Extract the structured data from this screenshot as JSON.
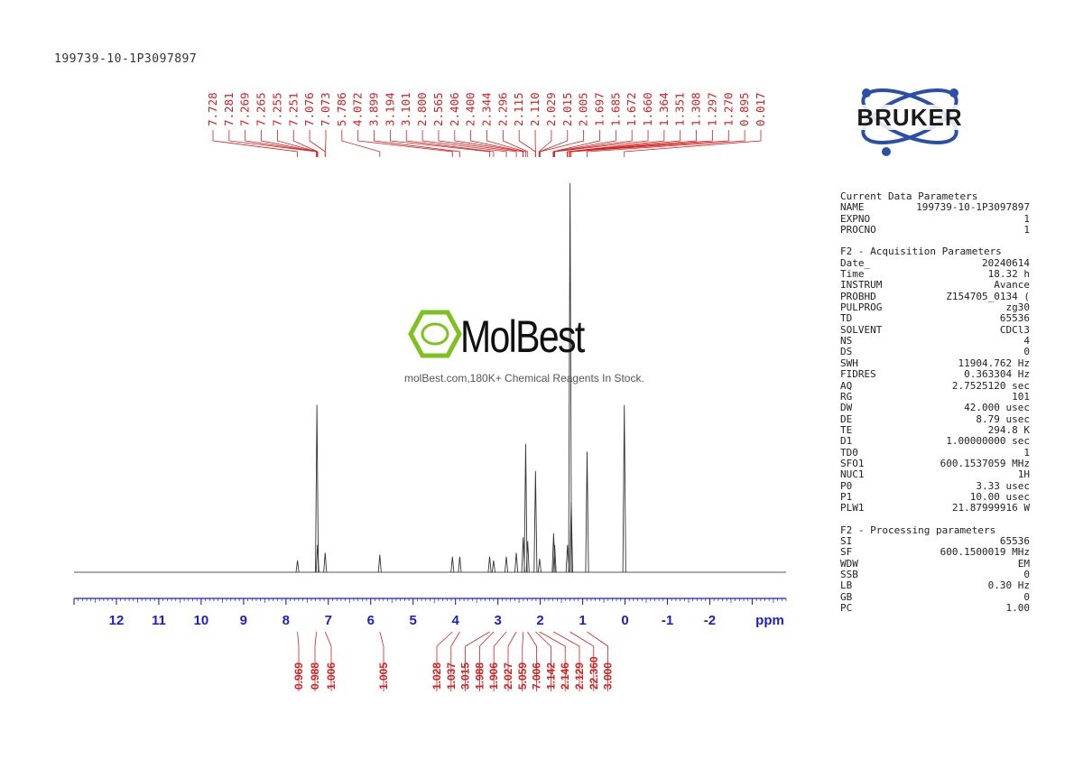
{
  "sample_id": "199739-10-1P3097897",
  "watermark": {
    "name": "MolBest",
    "tagline": "molBest.com,180K+ Chemical Reagents In Stock."
  },
  "logo": {
    "text": "BRUKER"
  },
  "colors": {
    "axis": "#1f1fbf",
    "annotation": "#d42020",
    "spectrum": "#555555",
    "logo": "#2b4fa8",
    "watermark_green": "#7dc21e"
  },
  "chart_data": {
    "type": "line",
    "xlabel": "ppm",
    "x_reversed": true,
    "xlim": [
      13.0,
      -3.8
    ],
    "x_ticks": [
      "12",
      "11",
      "10",
      "9",
      "8",
      "7",
      "6",
      "5",
      "4",
      "3",
      "2",
      "1",
      "0",
      "-1",
      "-2"
    ],
    "peak_labels": [
      "7.728",
      "7.281",
      "7.269",
      "7.265",
      "7.255",
      "7.251",
      "7.076",
      "7.073",
      "5.786",
      "4.072",
      "3.899",
      "3.194",
      "3.101",
      "2.800",
      "2.565",
      "2.406",
      "2.400",
      "2.344",
      "2.296",
      "2.115",
      "2.110",
      "2.029",
      "2.015",
      "2.005",
      "1.697",
      "1.685",
      "1.672",
      "1.660",
      "1.364",
      "1.351",
      "1.308",
      "1.297",
      "1.270",
      "0.895",
      "0.017"
    ],
    "peaks": [
      {
        "ppm": 7.728,
        "height": 0.03
      },
      {
        "ppm": 7.269,
        "height": 0.43
      },
      {
        "ppm": 7.255,
        "height": 0.07
      },
      {
        "ppm": 7.075,
        "height": 0.05
      },
      {
        "ppm": 5.786,
        "height": 0.045
      },
      {
        "ppm": 4.072,
        "height": 0.04
      },
      {
        "ppm": 3.899,
        "height": 0.04
      },
      {
        "ppm": 3.194,
        "height": 0.04
      },
      {
        "ppm": 3.101,
        "height": 0.03
      },
      {
        "ppm": 2.8,
        "height": 0.04
      },
      {
        "ppm": 2.565,
        "height": 0.05
      },
      {
        "ppm": 2.403,
        "height": 0.09
      },
      {
        "ppm": 2.344,
        "height": 0.33
      },
      {
        "ppm": 2.296,
        "height": 0.08
      },
      {
        "ppm": 2.112,
        "height": 0.26
      },
      {
        "ppm": 2.015,
        "height": 0.035
      },
      {
        "ppm": 1.685,
        "height": 0.1
      },
      {
        "ppm": 1.66,
        "height": 0.07
      },
      {
        "ppm": 1.357,
        "height": 0.07
      },
      {
        "ppm": 1.297,
        "height": 1.0
      },
      {
        "ppm": 1.27,
        "height": 0.18
      },
      {
        "ppm": 0.895,
        "height": 0.31
      },
      {
        "ppm": 0.017,
        "height": 0.43
      }
    ],
    "integrals": [
      {
        "label": "0.969",
        "ppm": 7.728
      },
      {
        "label": "0.988",
        "ppm": 7.28
      },
      {
        "label": "1.006",
        "ppm": 7.075
      },
      {
        "label": "1.005",
        "ppm": 5.786
      },
      {
        "label": "1.028",
        "ppm": 4.072
      },
      {
        "label": "1.037",
        "ppm": 3.899
      },
      {
        "label": "3.015",
        "ppm": 3.194
      },
      {
        "label": "1.988",
        "ppm": 3.101
      },
      {
        "label": "1.906",
        "ppm": 2.8
      },
      {
        "label": "2.027",
        "ppm": 2.565
      },
      {
        "label": "5.059",
        "ppm": 2.4
      },
      {
        "label": "7.006",
        "ppm": 2.3
      },
      {
        "label": "1.142",
        "ppm": 2.11
      },
      {
        "label": "2.146",
        "ppm": 2.015
      },
      {
        "label": "2.129",
        "ppm": 1.685
      },
      {
        "label": "22.360",
        "ppm": 1.3
      },
      {
        "label": "3.000",
        "ppm": 0.895
      }
    ]
  },
  "params": {
    "sections": [
      {
        "title": "Current Data Parameters",
        "rows": [
          {
            "k": "NAME",
            "v": "199739-10-1P3097897"
          },
          {
            "k": "EXPNO",
            "v": "1"
          },
          {
            "k": "PROCNO",
            "v": "1"
          }
        ]
      },
      {
        "title": "F2 - Acquisition Parameters",
        "rows": [
          {
            "k": "Date_",
            "v": "20240614"
          },
          {
            "k": "Time",
            "v": "18.32 h"
          },
          {
            "k": "INSTRUM",
            "v": "Avance"
          },
          {
            "k": "PROBHD",
            "v": "Z154705_0134 ("
          },
          {
            "k": "PULPROG",
            "v": "zg30"
          },
          {
            "k": "TD",
            "v": "65536"
          },
          {
            "k": "SOLVENT",
            "v": "CDCl3"
          },
          {
            "k": "NS",
            "v": "4"
          },
          {
            "k": "DS",
            "v": "0"
          },
          {
            "k": "SWH",
            "v": "11904.762 Hz"
          },
          {
            "k": "FIDRES",
            "v": "0.363304 Hz"
          },
          {
            "k": "AQ",
            "v": "2.7525120 sec"
          },
          {
            "k": "RG",
            "v": "101"
          },
          {
            "k": "DW",
            "v": "42.000 usec"
          },
          {
            "k": "DE",
            "v": "8.79 usec"
          },
          {
            "k": "TE",
            "v": "294.8 K"
          },
          {
            "k": "D1",
            "v": "1.00000000 sec"
          },
          {
            "k": "TD0",
            "v": "1"
          },
          {
            "k": "SFO1",
            "v": "600.1537059 MHz"
          },
          {
            "k": "NUC1",
            "v": "1H"
          },
          {
            "k": "P0",
            "v": "3.33 usec"
          },
          {
            "k": "P1",
            "v": "10.00 usec"
          },
          {
            "k": "PLW1",
            "v": "21.87999916 W"
          }
        ]
      },
      {
        "title": "F2 - Processing parameters",
        "rows": [
          {
            "k": "SI",
            "v": "65536"
          },
          {
            "k": "SF",
            "v": "600.1500019 MHz"
          },
          {
            "k": "WDW",
            "v": "EM"
          },
          {
            "k": "SSB",
            "v": "0"
          },
          {
            "k": "LB",
            "v": "0.30 Hz"
          },
          {
            "k": "GB",
            "v": "0"
          },
          {
            "k": "PC",
            "v": "1.00"
          }
        ]
      }
    ]
  }
}
